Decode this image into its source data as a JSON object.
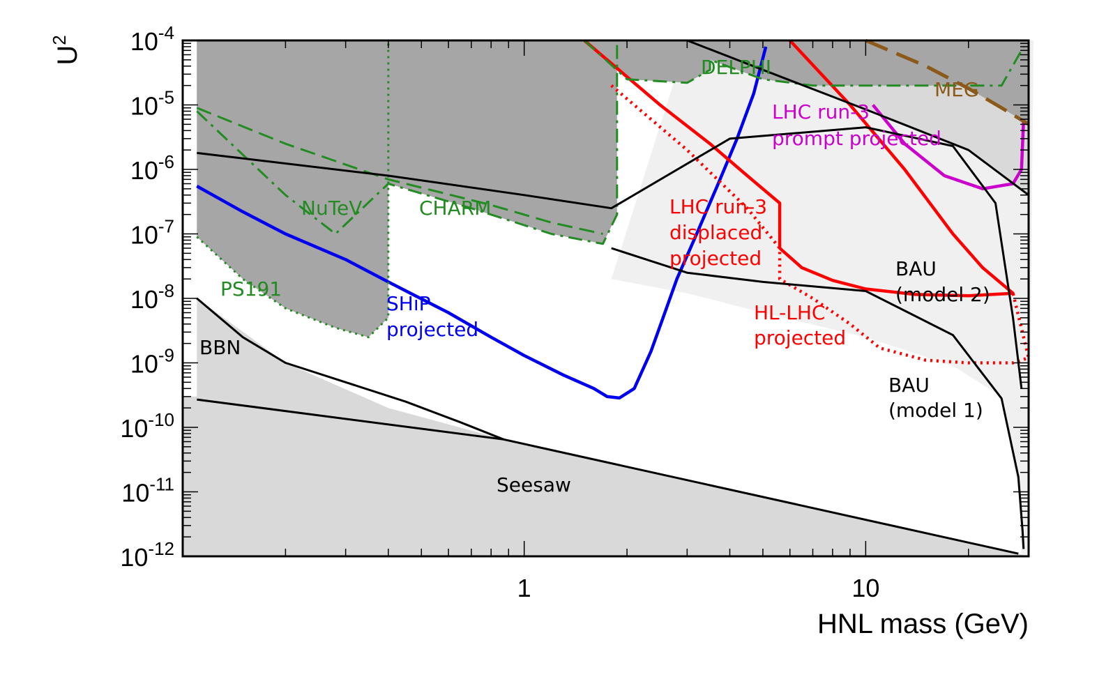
{
  "chart_data": {
    "type": "line",
    "xlabel": "HNL mass (GeV)",
    "ylabel": "U",
    "ylabel_sup": "2",
    "x_scale": "log",
    "y_scale": "log",
    "xlim": [
      0.1,
      30
    ],
    "ylim": [
      1e-12,
      0.0001
    ],
    "x_ticks": [
      {
        "value": 1,
        "label": "1"
      },
      {
        "value": 10,
        "label": "10"
      }
    ],
    "y_ticks": [
      {
        "value": 0.0001,
        "base": "10",
        "exp": "-4"
      },
      {
        "value": 1e-05,
        "base": "10",
        "exp": "-5"
      },
      {
        "value": 1e-06,
        "base": "10",
        "exp": "-6"
      },
      {
        "value": 1e-07,
        "base": "10",
        "exp": "-7"
      },
      {
        "value": 1e-08,
        "base": "10",
        "exp": "-8"
      },
      {
        "value": 1e-09,
        "base": "10",
        "exp": "-9"
      },
      {
        "value": 1e-10,
        "base": "10",
        "exp": "-10"
      },
      {
        "value": 1e-11,
        "base": "10",
        "exp": "-11"
      },
      {
        "value": 1e-12,
        "base": "10",
        "exp": "-12"
      }
    ],
    "grid": false,
    "colors": {
      "ship": "#0000ee",
      "lhc_displaced": "#ff0000",
      "lhc_prompt": "#cc00cc",
      "experiments": "#228b22",
      "meg": "#8b5a1a",
      "theory": "#000000",
      "excluded_dark": "#a6a6a6",
      "excluded_light": "#d9d9d9",
      "bau_region": "#f0f0f0"
    },
    "regions": [
      {
        "name": "BBN",
        "points": [
          [
            0.11,
            1e-08
          ],
          [
            0.2,
            1e-09
          ],
          [
            0.4,
            2e-10
          ],
          [
            0.87,
            6.5e-11
          ],
          [
            0.11,
            3e-10
          ]
        ]
      },
      {
        "name": "Seesaw",
        "points": [
          [
            0.11,
            3e-10
          ],
          [
            0.87,
            6.5e-11
          ],
          [
            28,
            1.1e-12
          ],
          [
            30,
            1e-12
          ],
          [
            0.1,
            1e-12
          ],
          [
            0.1,
            3e-10
          ]
        ]
      },
      {
        "name": "BAU (model 1)",
        "points": [
          [
            3,
            0.0001
          ],
          [
            31,
            0.0001
          ],
          [
            30,
            1e-12
          ],
          [
            28.6,
            1e-12
          ],
          [
            28,
            1e-11
          ],
          [
            25,
            3e-10
          ],
          [
            18,
            9e-10
          ],
          [
            10,
            2.5e-09
          ],
          [
            5,
            6e-09
          ],
          [
            3,
            1.2e-08
          ],
          [
            1.8,
            2e-08
          ]
        ]
      }
    ],
    "series": [
      {
        "name": "SHiP projected",
        "color_key": "ship",
        "style": "solid",
        "x": [
          0.11,
          0.15,
          0.2,
          0.3,
          0.4,
          0.6,
          0.8,
          1.0,
          1.3,
          1.6,
          1.75,
          1.9,
          2.1,
          2.35,
          2.55,
          2.8,
          3.2,
          3.7,
          4.2,
          4.7,
          5.1
        ],
        "y": [
          5.5e-07,
          2.2e-07,
          1e-07,
          4e-08,
          1.8e-08,
          6e-09,
          2.5e-09,
          1.3e-09,
          6.5e-10,
          4e-10,
          3e-10,
          2.85e-10,
          4e-10,
          1.5e-09,
          5e-09,
          2e-08,
          1e-07,
          6e-07,
          3e-06,
          1.5e-05,
          8e-05
        ]
      },
      {
        "name": "LHC run-3 displaced projected",
        "color_key": "lhc_displaced",
        "style": "solid",
        "x": [
          1.5,
          2.5,
          3.5,
          4.5,
          5.6,
          5.6,
          6.5,
          8,
          10,
          14,
          20,
          27,
          27,
          22,
          18,
          13,
          9,
          6
        ],
        "y": [
          0.0001,
          1e-05,
          2.5e-06,
          8e-07,
          3e-07,
          6e-08,
          3e-08,
          1.9e-08,
          1.4e-08,
          1.15e-08,
          1.1e-08,
          1.2e-08,
          1.2e-08,
          3e-08,
          1e-07,
          1e-06,
          1e-05,
          0.0001
        ]
      },
      {
        "name": "HL-LHC projected",
        "color_key": "lhc_displaced",
        "style": "dotted",
        "x": [
          1.8,
          3,
          4.5,
          5.6,
          5.6,
          7,
          9,
          11,
          15,
          20,
          27,
          30,
          27
        ],
        "y": [
          2e-05,
          2e-06,
          2.5e-07,
          6e-08,
          2e-08,
          1e-08,
          4e-09,
          1.7e-09,
          1.1e-09,
          1e-09,
          1e-09,
          1.2e-09,
          1.2e-08
        ]
      },
      {
        "name": "LHC run-3 prompt projected",
        "color_key": "lhc_prompt",
        "style": "solid",
        "x": [
          10.5,
          13,
          17,
          22,
          27,
          28.6,
          29
        ],
        "y": [
          1e-05,
          2.5e-06,
          8e-07,
          5e-07,
          6e-07,
          1e-06,
          6e-06
        ]
      },
      {
        "name": "DELPHI",
        "color_key": "experiments",
        "style": "dashdot",
        "x": [
          1.5,
          2,
          3,
          3.5,
          3.5,
          5,
          7,
          10,
          15,
          25,
          29
        ],
        "y": [
          0.0001,
          2.5e-05,
          2.2e-05,
          3.5e-05,
          5e-05,
          2.5e-05,
          2e-05,
          2e-05,
          2e-05,
          2e-05,
          8e-05
        ]
      },
      {
        "name": "CHARM",
        "color_key": "experiments",
        "style": "dashed",
        "x": [
          0.11,
          0.2,
          0.4,
          0.8,
          1.2,
          1.7
        ],
        "y": [
          9e-06,
          2.5e-06,
          7e-07,
          2.8e-07,
          1.5e-07,
          1e-07
        ]
      },
      {
        "name": "NuTeV",
        "color_key": "experiments",
        "style": "dashdot",
        "x": [
          0.11,
          0.2,
          0.28,
          0.4,
          0.7,
          1.2,
          1.7,
          1.87,
          1.87
        ],
        "y": [
          8e-06,
          4e-07,
          1e-07,
          6e-07,
          2.5e-07,
          1e-07,
          7e-08,
          2e-07,
          0.0001
        ]
      },
      {
        "name": "PS191",
        "color_key": "experiments",
        "style": "dotted",
        "x": [
          0.11,
          0.15,
          0.2,
          0.28,
          0.35,
          0.4,
          0.4
        ],
        "y": [
          9e-08,
          2e-08,
          7e-09,
          3.5e-09,
          2.5e-09,
          5e-09,
          0.0001
        ]
      },
      {
        "name": "MEG",
        "color_key": "meg",
        "style": "longdash",
        "x": [
          10,
          15,
          20,
          25,
          30
        ],
        "y": [
          0.0001,
          4e-05,
          1.8e-05,
          9e-06,
          5e-06
        ]
      },
      {
        "name": "BBN",
        "color_key": "theory",
        "style": "solid",
        "x": [
          0.11,
          0.15,
          0.2,
          0.3,
          0.45,
          0.65,
          0.87
        ],
        "y": [
          1e-08,
          2.5e-09,
          1e-09,
          5e-10,
          2.5e-10,
          1.2e-10,
          6.5e-11
        ]
      },
      {
        "name": "Seesaw",
        "color_key": "theory",
        "style": "solid",
        "x": [
          0.11,
          0.87,
          28
        ],
        "y": [
          2.7e-10,
          6.5e-11,
          1.1e-12
        ]
      },
      {
        "name": "BAU (model 2)",
        "color_key": "theory",
        "style": "solid",
        "x": [
          0.11,
          0.4,
          1.0,
          1.8,
          4,
          10,
          18,
          24,
          27,
          28.6
        ],
        "y": [
          1.8e-06,
          8e-07,
          4e-07,
          2.5e-07,
          3e-06,
          4.5e-06,
          2.3e-06,
          3e-07,
          5e-09,
          4e-10
        ]
      },
      {
        "name": "BAU (model 1)",
        "color_key": "theory",
        "style": "solid",
        "x": [
          1.8,
          3,
          5,
          10,
          18,
          25,
          28,
          28.8,
          29
        ],
        "y": [
          6e-08,
          2.5e-08,
          1.8e-08,
          1.3e-08,
          2.7e-09,
          2.8e-10,
          1.7e-11,
          2.5e-12,
          1.3e-12
        ]
      },
      {
        "name": "Upper BAU bound",
        "color_key": "theory",
        "style": "solid",
        "x": [
          3,
          5,
          10,
          20,
          30
        ],
        "y": [
          0.0001,
          3.5e-05,
          8.5e-06,
          2e-06,
          4e-07
        ]
      }
    ],
    "annotations": [
      {
        "key": "delphi",
        "text": "DELPHI",
        "color_key": "experiments"
      },
      {
        "key": "meg",
        "text": "MEG",
        "color_key": "meg"
      },
      {
        "key": "prompt1",
        "text": "LHC run-3",
        "color_key": "lhc_prompt"
      },
      {
        "key": "prompt2",
        "text": "prompt projected",
        "color_key": "lhc_prompt"
      },
      {
        "key": "nutev",
        "text": "NuTeV",
        "color_key": "experiments"
      },
      {
        "key": "charm",
        "text": "CHARM",
        "color_key": "experiments"
      },
      {
        "key": "disp1",
        "text": "LHC run-3",
        "color_key": "lhc_displaced"
      },
      {
        "key": "disp2",
        "text": "displaced",
        "color_key": "lhc_displaced"
      },
      {
        "key": "disp3",
        "text": "projected",
        "color_key": "lhc_displaced"
      },
      {
        "key": "ps191",
        "text": "PS191",
        "color_key": "experiments"
      },
      {
        "key": "ship1",
        "text": "SHiP",
        "color_key": "ship"
      },
      {
        "key": "ship2",
        "text": "projected",
        "color_key": "ship"
      },
      {
        "key": "hl1",
        "text": "HL-LHC",
        "color_key": "lhc_displaced"
      },
      {
        "key": "hl2",
        "text": "projected",
        "color_key": "lhc_displaced"
      },
      {
        "key": "bau2a",
        "text": "BAU",
        "color_key": "theory"
      },
      {
        "key": "bau2b",
        "text": "(model 2)",
        "color_key": "theory"
      },
      {
        "key": "bau1a",
        "text": "BAU",
        "color_key": "theory"
      },
      {
        "key": "bau1b",
        "text": "(model 1)",
        "color_key": "theory"
      },
      {
        "key": "bbn",
        "text": "BBN",
        "color_key": "theory"
      },
      {
        "key": "seesaw",
        "text": "Seesaw",
        "color_key": "theory"
      }
    ]
  }
}
